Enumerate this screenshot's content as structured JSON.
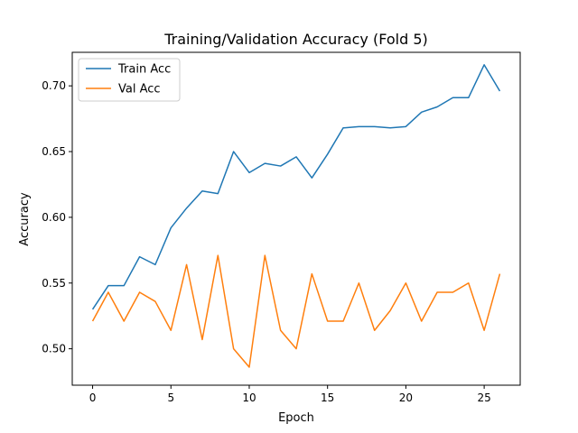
{
  "chart_data": {
    "type": "line",
    "title": "Training/Validation Accuracy (Fold 5)",
    "xlabel": "Epoch",
    "ylabel": "Accuracy",
    "xlim": [
      -1.3,
      27.3
    ],
    "ylim": [
      0.4723,
      0.7255
    ],
    "xticks": [
      0,
      5,
      10,
      15,
      20,
      25
    ],
    "yticks": [
      0.5,
      0.55,
      0.6,
      0.65,
      0.7
    ],
    "ytick_labels": [
      "0.50",
      "0.55",
      "0.60",
      "0.65",
      "0.70"
    ],
    "grid": false,
    "legend_position": "top-left",
    "x": [
      0,
      1,
      2,
      3,
      4,
      5,
      6,
      7,
      8,
      9,
      10,
      11,
      12,
      13,
      14,
      15,
      16,
      17,
      18,
      19,
      20,
      21,
      22,
      23,
      24,
      25,
      26
    ],
    "series": [
      {
        "name": "Train Acc",
        "color": "#1f77b4",
        "values": [
          0.53,
          0.548,
          0.548,
          0.57,
          0.564,
          0.592,
          0.607,
          0.62,
          0.618,
          0.65,
          0.634,
          0.641,
          0.639,
          0.646,
          0.63,
          0.648,
          0.668,
          0.669,
          0.669,
          0.668,
          0.669,
          0.68,
          0.684,
          0.691,
          0.691,
          0.716,
          0.696
        ]
      },
      {
        "name": "Val Acc",
        "color": "#ff7f0e",
        "values": [
          0.521,
          0.543,
          0.521,
          0.543,
          0.536,
          0.514,
          0.564,
          0.507,
          0.571,
          0.5,
          0.486,
          0.571,
          0.514,
          0.5,
          0.557,
          0.521,
          0.521,
          0.55,
          0.514,
          0.529,
          0.55,
          0.521,
          0.543,
          0.543,
          0.55,
          0.514,
          0.557
        ]
      }
    ]
  }
}
